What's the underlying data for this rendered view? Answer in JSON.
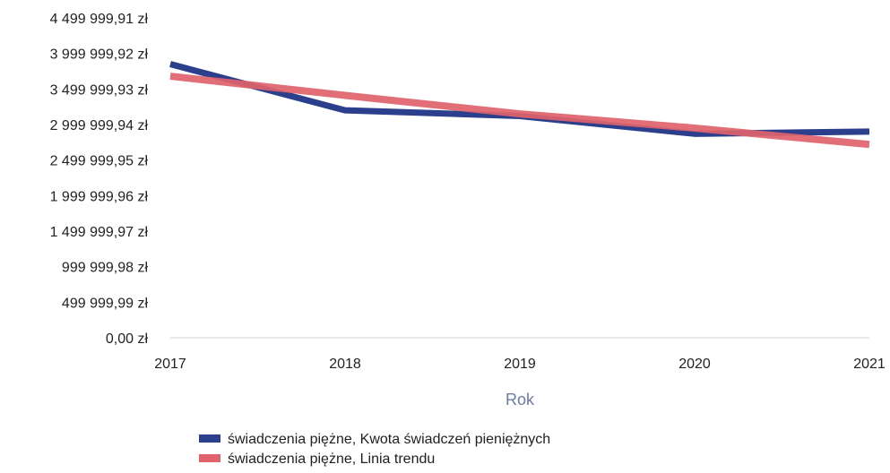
{
  "chart_data": {
    "type": "line",
    "title": "",
    "xlabel": "Rok",
    "ylabel": "",
    "x": [
      "2017",
      "2018",
      "2019",
      "2020",
      "2021"
    ],
    "y_ticks": [
      "0,00 zł",
      "499 999,99 zł",
      "999 999,98 zł",
      "1 499 999,97 zł",
      "1 999 999,96 zł",
      "2 499 999,95 zł",
      "2 999 999,94 zł",
      "3 499 999,93 zł",
      "3 999 999,92 zł",
      "4 499 999,91 zł"
    ],
    "ylim": [
      0,
      4499999.91
    ],
    "grid": false,
    "legend_position": "bottom",
    "series": [
      {
        "name": "świadczenia piężne, Kwota świadczeń pieniężnych",
        "color": "#2b3f8c",
        "values": [
          3850000,
          3200000,
          3120000,
          2870000,
          2900000
        ]
      },
      {
        "name": "świadczenia piężne, Linia trendu",
        "color": "#e0636b",
        "values": [
          3680000,
          3410000,
          3150000,
          2950000,
          2720000
        ]
      }
    ]
  }
}
